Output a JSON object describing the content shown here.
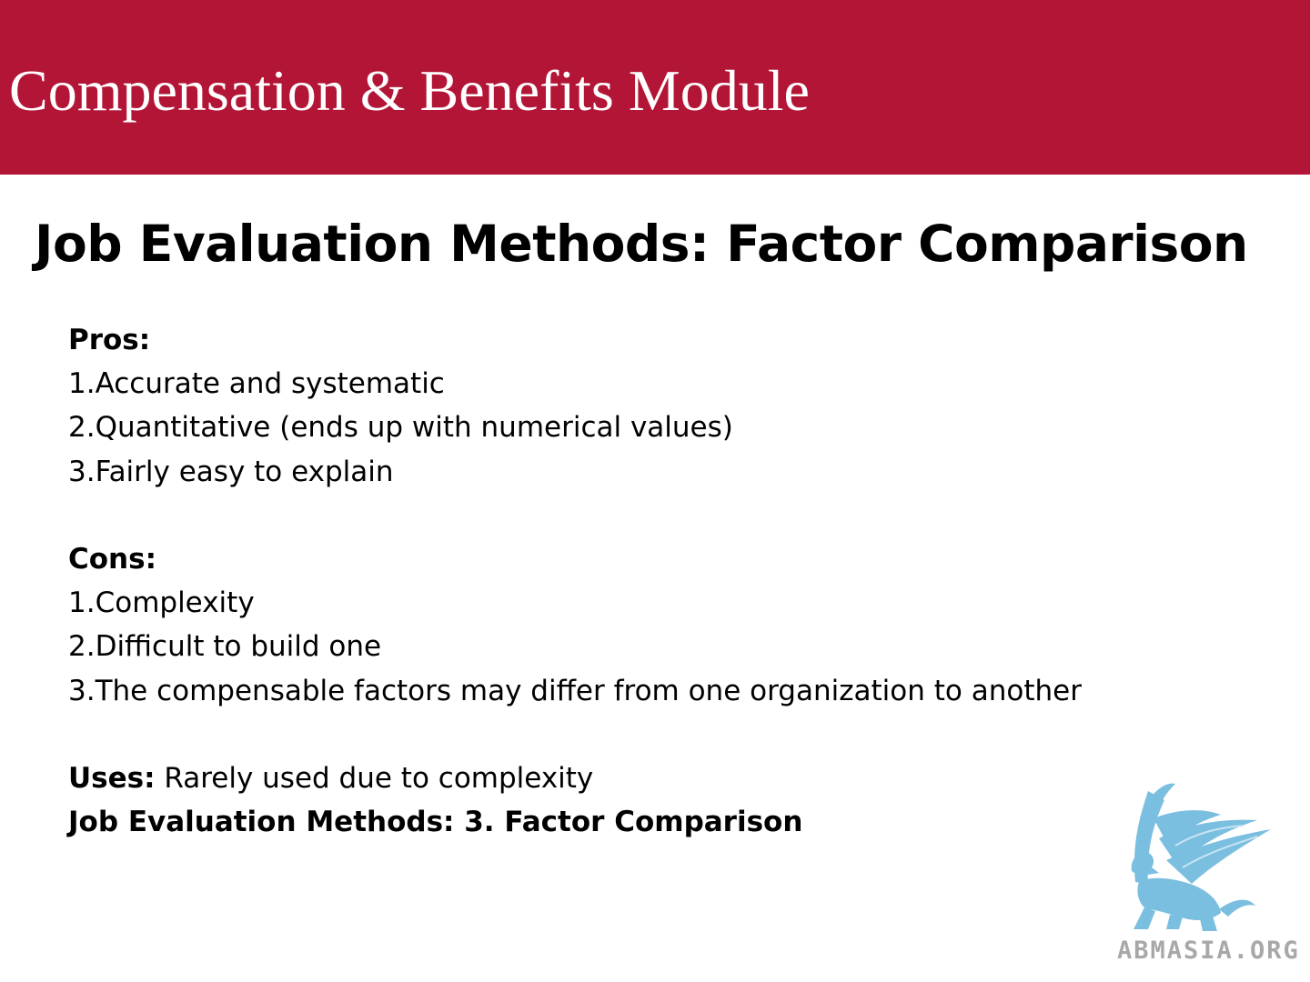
{
  "header": {
    "module_title": "Compensation & Benefits Module",
    "band_color": "#b31536"
  },
  "slide": {
    "title": "Job Evaluation Methods: Factor Comparison",
    "pros_heading": "Pros:",
    "pros": [
      "1.Accurate and systematic",
      "2.Quantitative (ends up with numerical values)",
      "3.Fairly easy to explain"
    ],
    "cons_heading": "Cons:",
    "cons": [
      "1.Complexity",
      "2.Difficult to build one",
      "3.The compensable factors may differ from one organization to another"
    ],
    "uses_label": "Uses:",
    "uses_text": " Rarely used due to complexity",
    "footer_line": "Job Evaluation Methods: 3. Factor Comparison"
  },
  "logo": {
    "icon": "griffin-logo-icon",
    "text": "ABMASIA.ORG",
    "color": "#7bbfe0"
  }
}
